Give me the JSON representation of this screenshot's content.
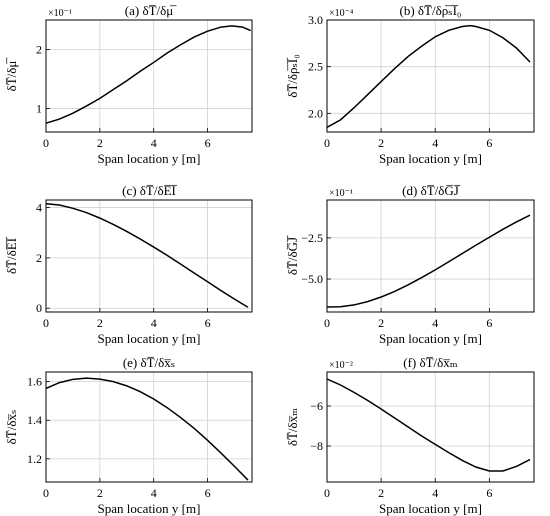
{
  "figure": {
    "xlabel": "Span location y [m]"
  },
  "chart_data": [
    {
      "id": "a",
      "type": "line",
      "title": "(a) δT̅/δμ̅",
      "ylabel": "δT̅/δμ̅",
      "exponent": "×10⁻¹",
      "xlim": [
        0,
        7.65
      ],
      "ylim": [
        0.6,
        2.5
      ],
      "xticks": [
        0,
        2,
        4,
        6
      ],
      "yticks": [
        1,
        2
      ],
      "x": [
        0,
        0.5,
        1,
        1.5,
        2,
        2.5,
        3,
        3.5,
        4,
        4.5,
        5,
        5.5,
        6,
        6.5,
        6.9,
        7.3,
        7.6
      ],
      "y": [
        0.75,
        0.82,
        0.92,
        1.04,
        1.17,
        1.32,
        1.47,
        1.63,
        1.78,
        1.94,
        2.08,
        2.21,
        2.31,
        2.38,
        2.4,
        2.38,
        2.32
      ]
    },
    {
      "id": "b",
      "type": "line",
      "title": "(b) δT̅/δρ̅ₛI̅₀",
      "ylabel": "δT̅/δρ̅ₛI̅₀",
      "exponent": "×10⁻⁴",
      "xlim": [
        0,
        7.65
      ],
      "ylim": [
        1.8,
        3.0
      ],
      "xticks": [
        0,
        2,
        4,
        6
      ],
      "yticks": [
        2.0,
        2.5,
        3.0
      ],
      "x": [
        0,
        0.5,
        1,
        1.5,
        2,
        2.5,
        3,
        3.5,
        4,
        4.5,
        5,
        5.3,
        5.5,
        6,
        6.5,
        7,
        7.5
      ],
      "y": [
        1.85,
        1.93,
        2.06,
        2.2,
        2.34,
        2.48,
        2.61,
        2.72,
        2.82,
        2.89,
        2.93,
        2.94,
        2.93,
        2.89,
        2.81,
        2.7,
        2.55
      ]
    },
    {
      "id": "c",
      "type": "line",
      "title": "(c) δT̅/δE̅I̅",
      "ylabel": "δT̅/δE̅I̅",
      "exponent": "",
      "xlim": [
        0,
        7.65
      ],
      "ylim": [
        -0.15,
        4.3
      ],
      "xticks": [
        0,
        2,
        4,
        6
      ],
      "yticks": [
        0,
        2,
        4
      ],
      "x": [
        0,
        0.5,
        1,
        1.5,
        2,
        2.5,
        3,
        3.5,
        4,
        4.5,
        5,
        5.5,
        6,
        6.5,
        7,
        7.5
      ],
      "y": [
        4.15,
        4.1,
        3.97,
        3.8,
        3.58,
        3.33,
        3.05,
        2.75,
        2.43,
        2.1,
        1.75,
        1.4,
        1.05,
        0.7,
        0.36,
        0.04
      ]
    },
    {
      "id": "d",
      "type": "line",
      "title": "(d) δT̅/δG̅J̅",
      "ylabel": "δT̅/δG̅J̅",
      "exponent": "×10⁻¹",
      "xlim": [
        0,
        7.65
      ],
      "ylim": [
        -7.0,
        -0.2
      ],
      "xticks": [
        0,
        2,
        4,
        6
      ],
      "yticks": [
        -5.0,
        -2.5
      ],
      "x": [
        0,
        0.5,
        1,
        1.5,
        2,
        2.5,
        3,
        3.5,
        4,
        4.5,
        5,
        5.5,
        6,
        6.5,
        7,
        7.5
      ],
      "y": [
        -6.7,
        -6.68,
        -6.57,
        -6.37,
        -6.09,
        -5.75,
        -5.35,
        -4.91,
        -4.44,
        -3.95,
        -3.45,
        -2.95,
        -2.46,
        -1.98,
        -1.53,
        -1.12
      ]
    },
    {
      "id": "e",
      "type": "line",
      "title": "(e) δT̅/δx̅ₛ",
      "ylabel": "δT̅/δx̅ₛ",
      "exponent": "",
      "xlim": [
        0,
        7.65
      ],
      "ylim": [
        1.08,
        1.65
      ],
      "xticks": [
        0,
        2,
        4,
        6
      ],
      "yticks": [
        1.2,
        1.4,
        1.6
      ],
      "x": [
        0,
        0.5,
        1,
        1.5,
        2,
        2.5,
        3,
        3.5,
        4,
        4.5,
        5,
        5.5,
        6,
        6.5,
        7,
        7.5
      ],
      "y": [
        1.565,
        1.595,
        1.612,
        1.618,
        1.613,
        1.6,
        1.578,
        1.548,
        1.51,
        1.465,
        1.414,
        1.358,
        1.296,
        1.23,
        1.161,
        1.09
      ]
    },
    {
      "id": "f",
      "type": "line",
      "title": "(f) δT̅/δx̅ₘ",
      "ylabel": "δT̅/δx̅ₘ",
      "exponent": "×10⁻²",
      "xlim": [
        0,
        7.65
      ],
      "ylim": [
        -9.8,
        -4.3
      ],
      "xticks": [
        0,
        2,
        4,
        6
      ],
      "yticks": [
        -8,
        -6
      ],
      "x": [
        0,
        0.5,
        1,
        1.5,
        2,
        2.5,
        3,
        3.5,
        4,
        4.5,
        5,
        5.5,
        6,
        6.5,
        7,
        7.5
      ],
      "y": [
        -4.65,
        -4.95,
        -5.32,
        -5.72,
        -6.15,
        -6.6,
        -7.05,
        -7.5,
        -7.92,
        -8.33,
        -8.72,
        -9.05,
        -9.25,
        -9.25,
        -9.02,
        -8.68
      ]
    }
  ]
}
